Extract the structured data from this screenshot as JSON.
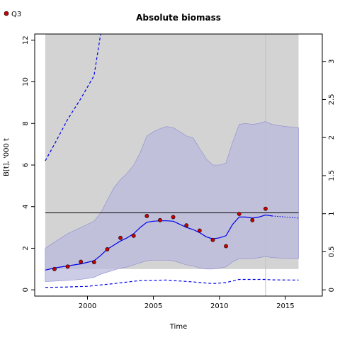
{
  "chart_data": {
    "type": "line",
    "title": "Absolute biomass",
    "xlabel": "Time",
    "ylabel": "B[t], '000 t",
    "y2label": "",
    "xlim": [
      1996.0,
      2017.8
    ],
    "ylim": [
      -0.3,
      12.3
    ],
    "y2lim": [
      -0.082,
      3.36
    ],
    "xticks": [
      2000,
      2005,
      2010,
      2015
    ],
    "yticks": [
      0,
      2,
      4,
      6,
      8,
      10,
      12
    ],
    "y2ticks": [
      0,
      0.5,
      1,
      1.5,
      2,
      2.5,
      3
    ],
    "legend": {
      "position": "top-left",
      "entries": [
        {
          "label": "Q3",
          "marker": "point",
          "color": "#cc0000"
        }
      ]
    },
    "reference_line_y": 3.7,
    "shaded_region": {
      "x": [
        1996.8,
        2016.0
      ],
      "ymin": 1.0,
      "ymax": 12.3,
      "color": "#d3d3d3"
    },
    "vertical_line_x": 2013.5,
    "series": [
      {
        "role": "estimate",
        "color": "#0000ee",
        "x": [
          1996.8,
          1997.5,
          1998.5,
          1999.5,
          2000.5,
          2001.0,
          2001.5,
          2002.0,
          2002.5,
          2003.0,
          2003.5,
          2004.0,
          2004.5,
          2005.0,
          2005.5,
          2006.0,
          2006.5,
          2007.0,
          2007.5,
          2008.0,
          2008.5,
          2009.0,
          2009.5,
          2010.0,
          2010.5,
          2011.0,
          2011.5,
          2012.0,
          2012.5,
          2013.0,
          2013.5,
          2014.0
        ],
        "y": [
          0.95,
          1.05,
          1.15,
          1.25,
          1.4,
          1.65,
          1.95,
          2.15,
          2.35,
          2.5,
          2.7,
          3.0,
          3.25,
          3.3,
          3.32,
          3.32,
          3.3,
          3.15,
          3.0,
          2.9,
          2.75,
          2.55,
          2.45,
          2.5,
          2.6,
          3.15,
          3.5,
          3.5,
          3.45,
          3.5,
          3.6,
          3.55
        ]
      },
      {
        "role": "projection",
        "color": "#0000ee",
        "style": "dotted",
        "x": [
          2014.0,
          2015.0,
          2016.0
        ],
        "y": [
          3.55,
          3.5,
          3.45
        ]
      },
      {
        "role": "upper-dashed-bound",
        "color": "#0000ee",
        "style": "dashed",
        "x": [
          1996.8,
          1997.5,
          1998.5,
          1999.5,
          2000.5,
          2001.0
        ],
        "y": [
          6.2,
          7.0,
          8.2,
          9.2,
          10.3,
          12.3
        ]
      },
      {
        "role": "lower-dashed-bound",
        "color": "#0000ee",
        "style": "dashed",
        "x": [
          1996.8,
          1998.0,
          2000.0,
          2002.0,
          2004.0,
          2006.0,
          2008.0,
          2009.5,
          2010.5,
          2011.5,
          2012.5,
          2013.5,
          2014.0,
          2016.0
        ],
        "y": [
          0.12,
          0.13,
          0.17,
          0.3,
          0.45,
          0.47,
          0.38,
          0.3,
          0.35,
          0.5,
          0.5,
          0.5,
          0.48,
          0.47
        ]
      }
    ],
    "bands": [
      {
        "role": "outer-interval",
        "color": "#b8b8dc",
        "x": [
          1996.8,
          1997.5,
          1998.5,
          1999.5,
          2000.5,
          2001.0,
          2001.5,
          2002.0,
          2002.5,
          2003.0,
          2003.5,
          2004.0,
          2004.5,
          2005.0,
          2005.5,
          2006.0,
          2006.5,
          2007.0,
          2007.5,
          2008.0,
          2008.5,
          2009.0,
          2009.5,
          2010.0,
          2010.5,
          2011.0,
          2011.5,
          2012.0,
          2012.5,
          2013.0,
          2013.5,
          2014.0,
          2015.0,
          2016.0
        ],
        "lower": [
          0.4,
          0.42,
          0.45,
          0.5,
          0.6,
          0.75,
          0.85,
          0.95,
          1.05,
          1.1,
          1.2,
          1.3,
          1.4,
          1.42,
          1.42,
          1.42,
          1.4,
          1.3,
          1.2,
          1.15,
          1.05,
          1.0,
          1.0,
          1.05,
          1.1,
          1.35,
          1.5,
          1.5,
          1.5,
          1.55,
          1.6,
          1.55,
          1.52,
          1.5
        ],
        "upper": [
          2.0,
          2.3,
          2.7,
          3.0,
          3.3,
          3.7,
          4.3,
          4.9,
          5.3,
          5.6,
          6.0,
          6.6,
          7.4,
          7.6,
          7.75,
          7.85,
          7.8,
          7.6,
          7.4,
          7.3,
          6.8,
          6.3,
          6.0,
          6.0,
          6.1,
          7.1,
          7.95,
          8.0,
          7.95,
          8.0,
          8.1,
          7.95,
          7.85,
          7.8
        ]
      }
    ],
    "points": {
      "name": "Q3",
      "color": "#cc0000",
      "x": [
        1997.5,
        1998.5,
        1999.5,
        2000.5,
        2001.5,
        2002.5,
        2003.5,
        2004.5,
        2005.5,
        2006.5,
        2007.5,
        2008.5,
        2009.5,
        2010.5,
        2011.5,
        2012.5,
        2013.5
      ],
      "y": [
        1.0,
        1.12,
        1.35,
        1.33,
        1.95,
        2.5,
        2.6,
        3.55,
        3.35,
        3.5,
        3.1,
        2.85,
        2.4,
        2.1,
        3.65,
        3.35,
        3.9
      ]
    }
  }
}
